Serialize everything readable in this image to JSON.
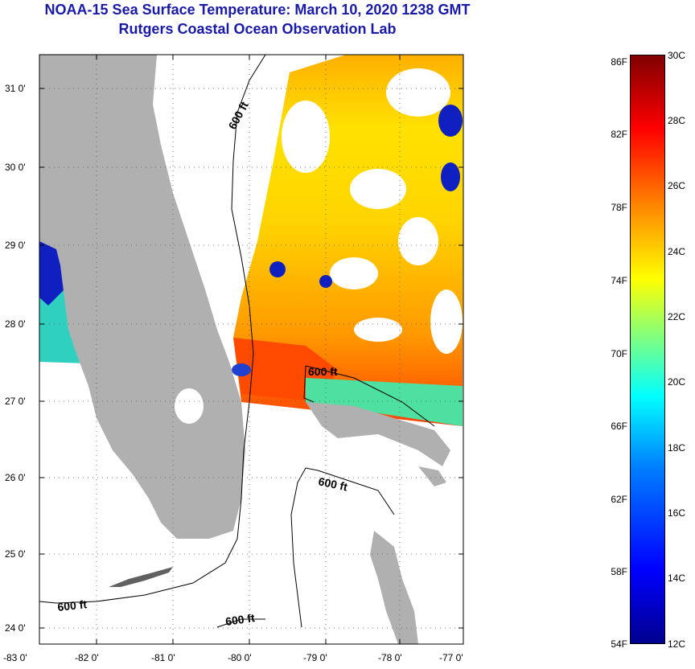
{
  "title": "NOAA-15 Sea Surface Temperature:  March 10, 2020 1238 GMT",
  "subtitle": "Rutgers Coastal Ocean Observation Lab",
  "map": {
    "lat_ticks": [
      "31 0'",
      "30 0'",
      "29 0'",
      "28 0'",
      "27 0'",
      "26 0'",
      "25 0'",
      "24 0'"
    ],
    "lon_ticks": [
      "-83 0'",
      "-82 0'",
      "-81 0'",
      "-80 0'",
      "-79 0'",
      "-78 0'",
      "-77 0'"
    ],
    "depth_label": "600 ft",
    "colors": {
      "land": "#b0b0b0",
      "cloud": "#ffffff",
      "grid": "#000000"
    }
  },
  "colorbar": {
    "fahrenheit": [
      "86F",
      "82F",
      "78F",
      "74F",
      "70F",
      "66F",
      "62F",
      "58F",
      "54F"
    ],
    "celsius": [
      "30C",
      "28C",
      "26C",
      "24C",
      "22C",
      "20C",
      "18C",
      "16C",
      "14C",
      "12C"
    ]
  }
}
